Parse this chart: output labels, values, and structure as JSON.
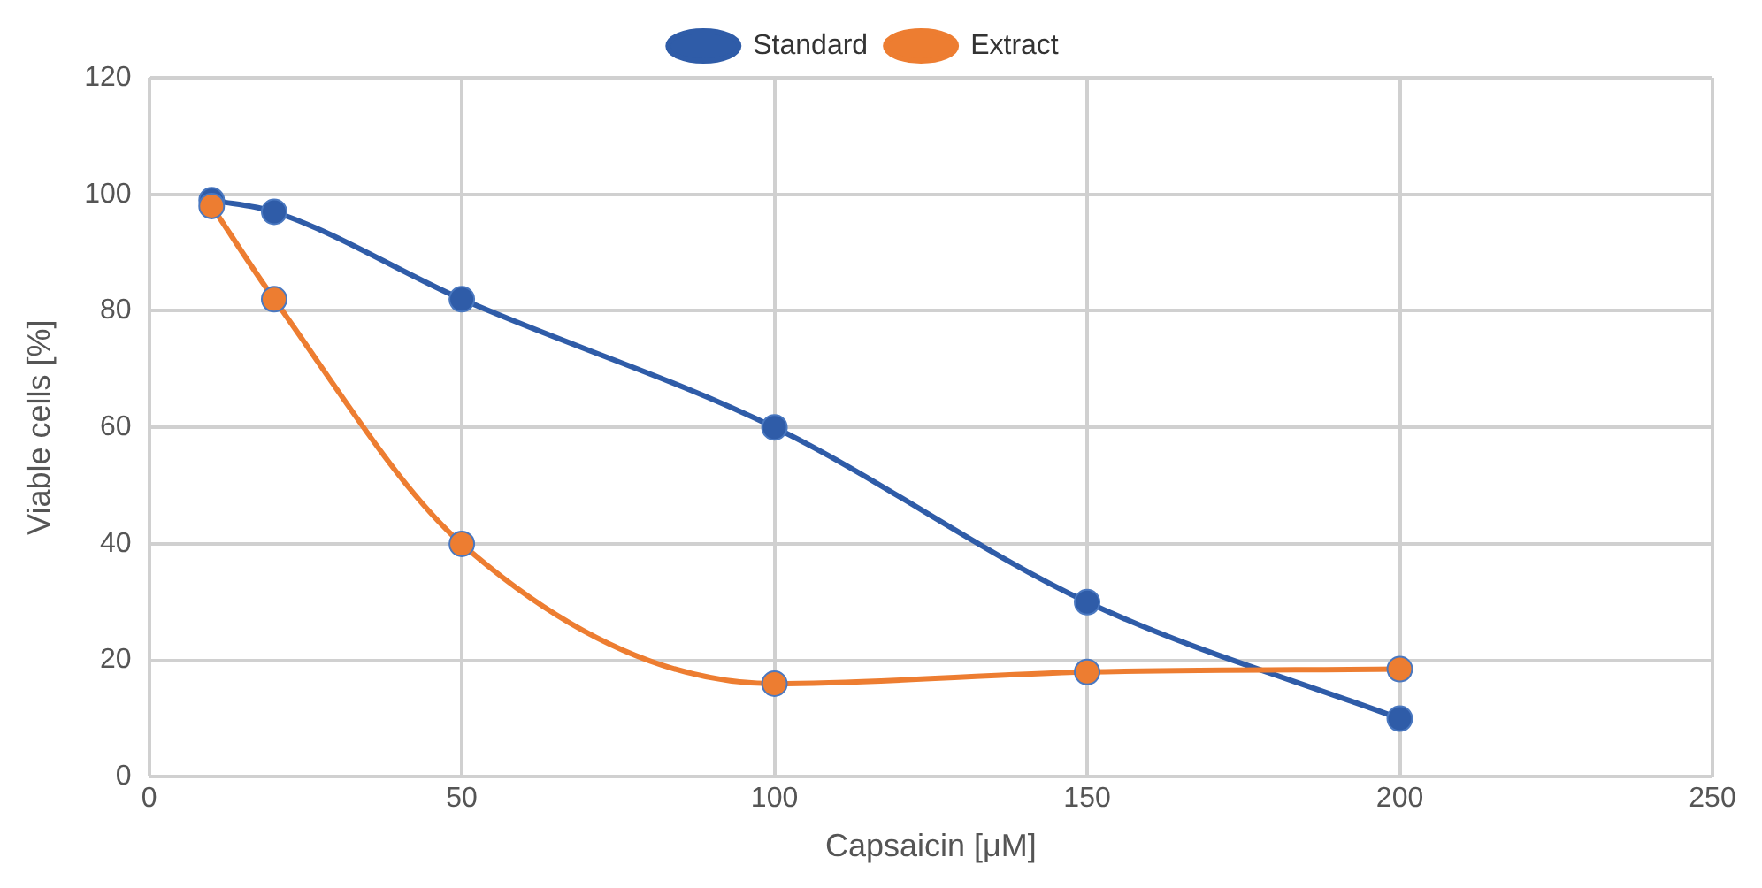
{
  "chart_data": {
    "type": "line",
    "xlabel": "Capsaicin [μM]",
    "ylabel": "Viable cells [%]",
    "xlim": [
      0,
      250
    ],
    "xticks": [
      0,
      50,
      100,
      150,
      200,
      250
    ],
    "ylim": [
      0,
      120
    ],
    "yticks": [
      0,
      20,
      40,
      60,
      80,
      100,
      120
    ],
    "grid": true,
    "legend": "top",
    "marker": "circle",
    "line_style": "solid",
    "series": [
      {
        "name": "Standard",
        "color": "#2f5ca8",
        "x": [
          10,
          20,
          50,
          100,
          150,
          200
        ],
        "values": [
          99,
          97,
          82,
          60,
          30,
          10
        ]
      },
      {
        "name": "Extract",
        "color": "#ed7d31",
        "x": [
          10,
          20,
          50,
          100,
          150,
          200
        ],
        "values": [
          98,
          82,
          40,
          16,
          18,
          18.5
        ]
      }
    ]
  }
}
